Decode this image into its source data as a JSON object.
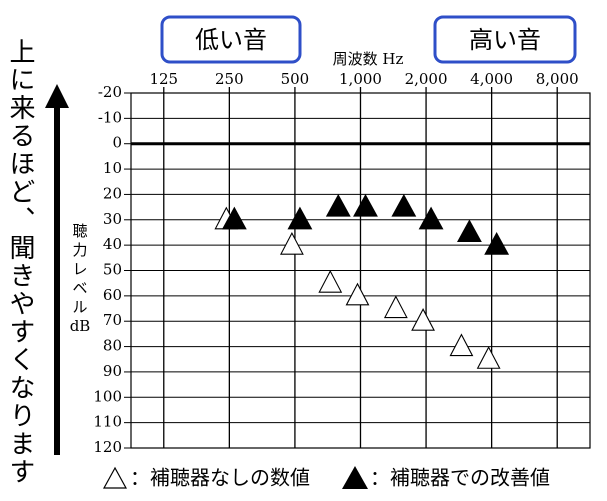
{
  "chart_data": {
    "type": "scatter",
    "marker": "triangle",
    "x_label": "周波数 Hz",
    "y_label": "聴力レベルdB",
    "annotation": "上に来るほど、聞きやすくなります",
    "low_label": "低い音",
    "high_label": "高い音",
    "x_log": true,
    "y_inverted": true,
    "grid": true,
    "xlim": [
      88.4,
      11314
    ],
    "ylim": [
      -20,
      120
    ],
    "xticks": [
      125,
      250,
      500,
      {
        "value": 1000,
        "label": "1,000"
      },
      {
        "value": 2000,
        "label": "2,000"
      },
      {
        "value": 4000,
        "label": "4,000"
      },
      {
        "value": 8000,
        "label": "8,000"
      }
    ],
    "yticks": [
      -20,
      -10,
      0,
      10,
      20,
      30,
      40,
      50,
      60,
      70,
      80,
      90,
      100,
      110,
      120
    ],
    "x": [
      250,
      500,
      750,
      1000,
      1500,
      2000,
      3000,
      4000
    ],
    "series": [
      {
        "name": "：補聴器なしの数値",
        "color": "#ffffff",
        "values": [
          30,
          40,
          55,
          60,
          65,
          70,
          80,
          85
        ]
      },
      {
        "name": "：補聴器での改善値",
        "color": "#000000",
        "values": [
          30,
          30,
          25,
          25,
          25,
          30,
          35,
          40
        ]
      }
    ]
  }
}
